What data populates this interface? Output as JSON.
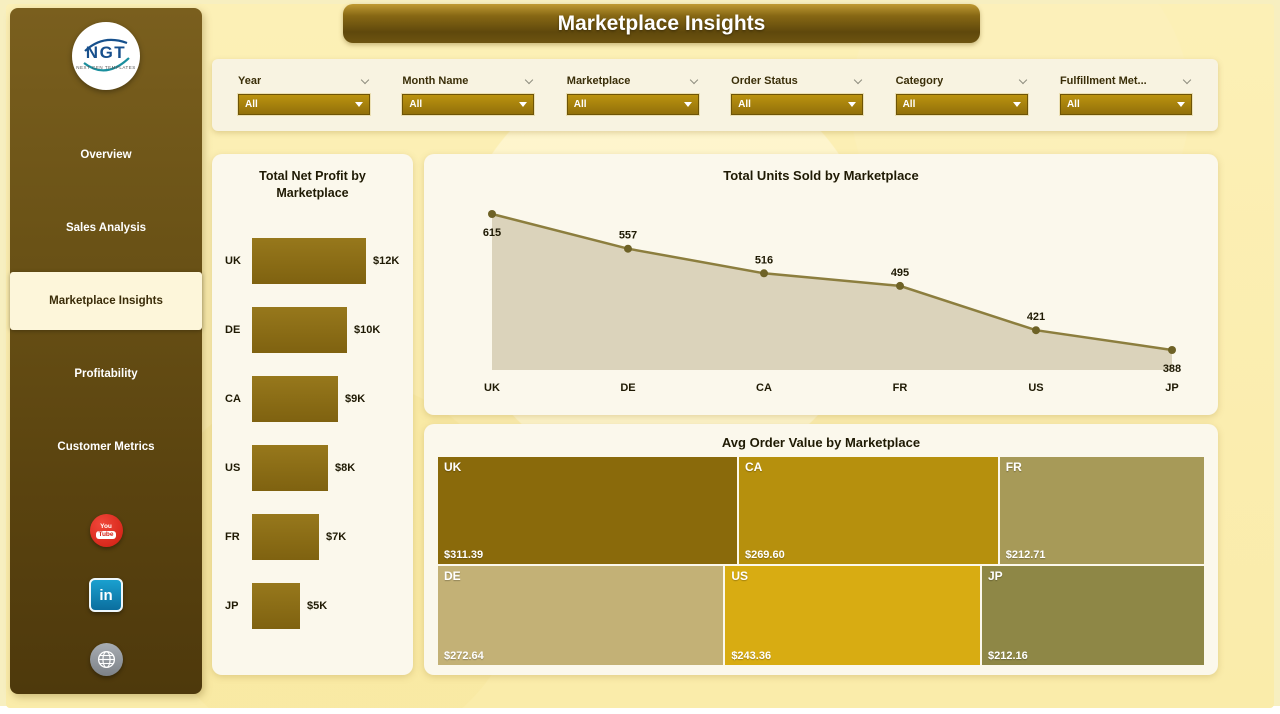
{
  "page": {
    "title": "Marketplace Insights"
  },
  "sidebar": {
    "logo": {
      "text": "NGT",
      "subtext": "NEXT GEN TEMPLATES"
    },
    "items": [
      {
        "label": "Overview",
        "active": false
      },
      {
        "label": "Sales Analysis",
        "active": false
      },
      {
        "label": "Marketplace Insights",
        "active": true
      },
      {
        "label": "Profitability",
        "active": false
      },
      {
        "label": "Customer Metrics",
        "active": false
      }
    ],
    "social": {
      "youtube": {
        "line1": "You",
        "line2": "Tube"
      },
      "linkedin": {
        "label": "in"
      },
      "website": {
        "icon": "globe"
      }
    }
  },
  "filters": [
    {
      "label": "Year",
      "value": "All"
    },
    {
      "label": "Month Name",
      "value": "All"
    },
    {
      "label": "Marketplace",
      "value": "All"
    },
    {
      "label": "Order Status",
      "value": "All"
    },
    {
      "label": "Category",
      "value": "All"
    },
    {
      "label": "Fulfillment Met...",
      "value": "All"
    }
  ],
  "colors": {
    "bar": "#8a6b12",
    "line": "#8c7e3e",
    "area": "#d9d1b8",
    "marker": "#6e6226",
    "text_dark": "#1f1a04"
  },
  "chart_data": [
    {
      "type": "bar",
      "orientation": "horizontal",
      "title": "Total Net Profit by Marketplace",
      "categories": [
        "UK",
        "DE",
        "CA",
        "US",
        "FR",
        "JP"
      ],
      "values": [
        12,
        10,
        9,
        8,
        7,
        5
      ],
      "labels": [
        "$12K",
        "$10K",
        "$9K",
        "$8K",
        "$7K",
        "$5K"
      ],
      "xlim": [
        0,
        12
      ]
    },
    {
      "type": "area",
      "title": "Total Units Sold by Marketplace",
      "categories": [
        "UK",
        "DE",
        "CA",
        "FR",
        "US",
        "JP"
      ],
      "values": [
        615,
        557,
        516,
        495,
        421,
        388
      ],
      "ylim": [
        350,
        650
      ],
      "legend": "off",
      "grid": "off"
    },
    {
      "type": "treemap",
      "title": "Avg Order Value by Marketplace",
      "items": [
        {
          "label": "UK",
          "display": "$311.39",
          "value": 311.39,
          "color": "#8a6a0b",
          "row": 0
        },
        {
          "label": "CA",
          "display": "$269.60",
          "value": 269.6,
          "color": "#b6900d",
          "row": 0
        },
        {
          "label": "FR",
          "display": "$212.71",
          "value": 212.71,
          "color": "#a79a58",
          "row": 0
        },
        {
          "label": "DE",
          "display": "$272.64",
          "value": 272.64,
          "color": "#c3b176",
          "row": 1
        },
        {
          "label": "US",
          "display": "$243.36",
          "value": 243.36,
          "color": "#d8ac12",
          "row": 1
        },
        {
          "label": "JP",
          "display": "$212.16",
          "value": 212.16,
          "color": "#8e8746",
          "row": 1
        }
      ]
    }
  ]
}
